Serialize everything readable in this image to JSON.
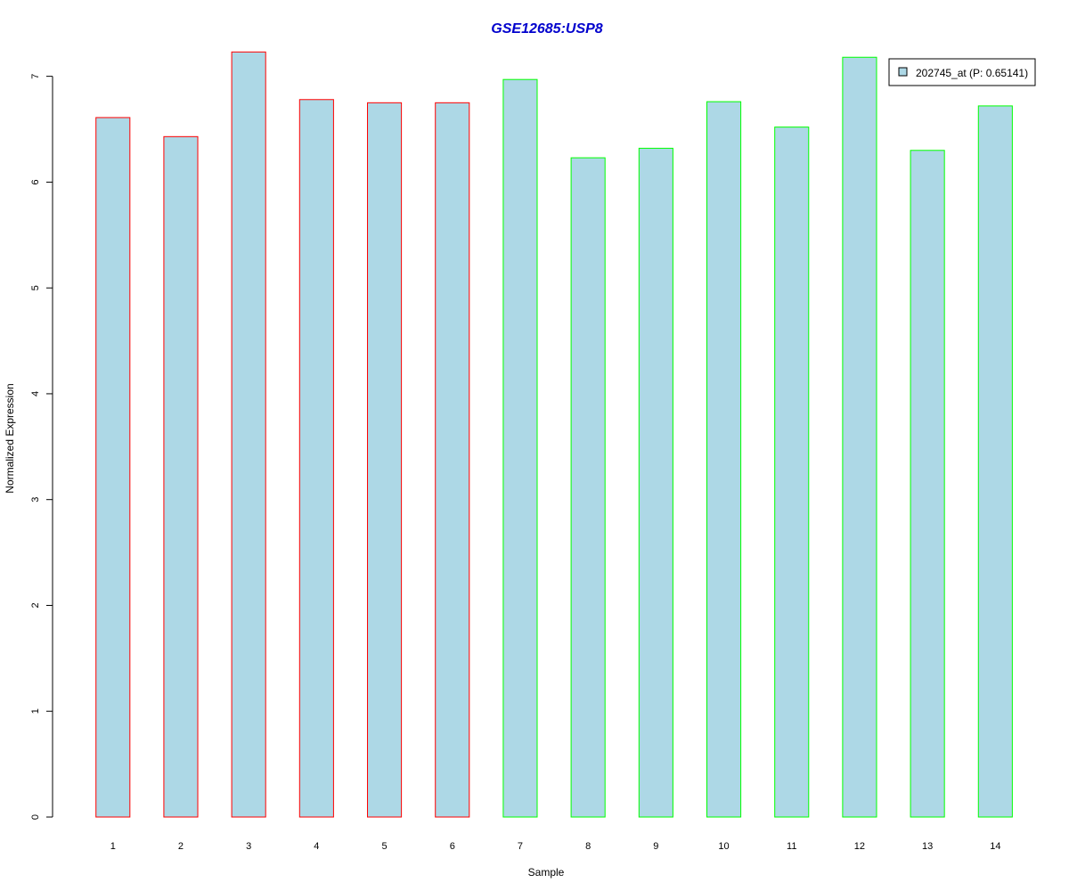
{
  "chart_data": {
    "type": "bar",
    "title": "GSE12685:USP8",
    "xlabel": "Sample",
    "ylabel": "Normalized Expression",
    "categories": [
      "1",
      "2",
      "3",
      "4",
      "5",
      "6",
      "7",
      "8",
      "9",
      "10",
      "11",
      "12",
      "13",
      "14"
    ],
    "series": [
      {
        "name": "202745_at (P: 0.65141)",
        "values": [
          6.61,
          6.43,
          7.23,
          6.78,
          6.75,
          6.75,
          6.97,
          6.23,
          6.32,
          6.76,
          6.52,
          7.18,
          6.3,
          6.72
        ]
      }
    ],
    "group_colors": [
      "#ff0000",
      "#ff0000",
      "#ff0000",
      "#ff0000",
      "#ff0000",
      "#ff0000",
      "#00ff00",
      "#00ff00",
      "#00ff00",
      "#00ff00",
      "#00ff00",
      "#00ff00",
      "#00ff00",
      "#00ff00"
    ],
    "bar_fill": "#add8e6",
    "title_color": "#0000cd",
    "yticks": [
      "0",
      "1",
      "2",
      "3",
      "4",
      "5",
      "6",
      "7"
    ],
    "ylim": [
      0,
      7.3
    ],
    "grid": false,
    "legend_position": "top-right"
  }
}
